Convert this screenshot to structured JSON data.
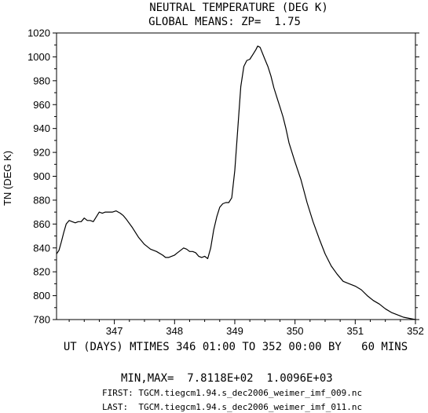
{
  "chart_data": {
    "type": "line",
    "title": "NEUTRAL TEMPERATURE (DEG K)",
    "subtitle": "GLOBAL MEANS: ZP=  1.75",
    "xlabel": "UT (DAYS) MTIMES 346 01:00 TO 352 00:00 BY   60 MINS",
    "ylabel": "TN (DEG K)",
    "xlim": [
      346.04,
      352.0
    ],
    "ylim": [
      780,
      1020
    ],
    "xticks": [
      "347",
      "348",
      "349",
      "350",
      "351",
      "352"
    ],
    "yticks": [
      "780",
      "800",
      "820",
      "840",
      "860",
      "880",
      "900",
      "920",
      "940",
      "960",
      "980",
      "1000",
      "1020"
    ],
    "grid": false,
    "series": [
      {
        "name": "",
        "color": "#000000",
        "points": [
          [
            346.04,
            835
          ],
          [
            346.08,
            838
          ],
          [
            346.12,
            845
          ],
          [
            346.16,
            853
          ],
          [
            346.2,
            860
          ],
          [
            346.25,
            863
          ],
          [
            346.3,
            862
          ],
          [
            346.35,
            861
          ],
          [
            346.4,
            862
          ],
          [
            346.45,
            862
          ],
          [
            346.5,
            865
          ],
          [
            346.55,
            863
          ],
          [
            346.6,
            863
          ],
          [
            346.65,
            862
          ],
          [
            346.7,
            866
          ],
          [
            346.75,
            870
          ],
          [
            346.8,
            869
          ],
          [
            346.85,
            870
          ],
          [
            346.9,
            870
          ],
          [
            346.97,
            870
          ],
          [
            347.03,
            871
          ],
          [
            347.1,
            869
          ],
          [
            347.15,
            867
          ],
          [
            347.2,
            864
          ],
          [
            347.3,
            857
          ],
          [
            347.4,
            849
          ],
          [
            347.5,
            843
          ],
          [
            347.6,
            839
          ],
          [
            347.7,
            837
          ],
          [
            347.8,
            834
          ],
          [
            347.85,
            832
          ],
          [
            347.9,
            832
          ],
          [
            347.95,
            833
          ],
          [
            348.0,
            834
          ],
          [
            348.05,
            836
          ],
          [
            348.1,
            838
          ],
          [
            348.15,
            840
          ],
          [
            348.2,
            839
          ],
          [
            348.25,
            837
          ],
          [
            348.3,
            837
          ],
          [
            348.35,
            836
          ],
          [
            348.4,
            833
          ],
          [
            348.45,
            832
          ],
          [
            348.5,
            833
          ],
          [
            348.55,
            831
          ],
          [
            348.6,
            840
          ],
          [
            348.65,
            855
          ],
          [
            348.7,
            866
          ],
          [
            348.75,
            874
          ],
          [
            348.8,
            877
          ],
          [
            348.85,
            878
          ],
          [
            348.9,
            878
          ],
          [
            348.95,
            882
          ],
          [
            349.0,
            905
          ],
          [
            349.05,
            940
          ],
          [
            349.1,
            975
          ],
          [
            349.15,
            992
          ],
          [
            349.2,
            997
          ],
          [
            349.25,
            998
          ],
          [
            349.3,
            1002
          ],
          [
            349.35,
            1006
          ],
          [
            349.38,
            1009
          ],
          [
            349.42,
            1008
          ],
          [
            349.5,
            998
          ],
          [
            349.55,
            992
          ],
          [
            349.6,
            984
          ],
          [
            349.65,
            974
          ],
          [
            349.7,
            966
          ],
          [
            349.75,
            958
          ],
          [
            349.8,
            950
          ],
          [
            349.85,
            940
          ],
          [
            349.9,
            928
          ],
          [
            349.95,
            920
          ],
          [
            350.0,
            912
          ],
          [
            350.1,
            897
          ],
          [
            350.2,
            878
          ],
          [
            350.3,
            862
          ],
          [
            350.4,
            848
          ],
          [
            350.5,
            835
          ],
          [
            350.6,
            825
          ],
          [
            350.7,
            818
          ],
          [
            350.8,
            812
          ],
          [
            350.9,
            810
          ],
          [
            351.0,
            808
          ],
          [
            351.1,
            805
          ],
          [
            351.2,
            800
          ],
          [
            351.3,
            796
          ],
          [
            351.4,
            793
          ],
          [
            351.5,
            789
          ],
          [
            351.6,
            786
          ],
          [
            351.7,
            784
          ],
          [
            351.8,
            782
          ],
          [
            351.9,
            781
          ],
          [
            352.0,
            780
          ]
        ]
      }
    ]
  },
  "footer": {
    "minmax": "MIN,MAX=  7.8118E+02  1.0096E+03",
    "first": "FIRST: TGCM.tiegcm1.94.s_dec2006_weimer_imf_009.nc",
    "last": "LAST:  TGCM.tiegcm1.94.s_dec2006_weimer_imf_011.nc"
  }
}
